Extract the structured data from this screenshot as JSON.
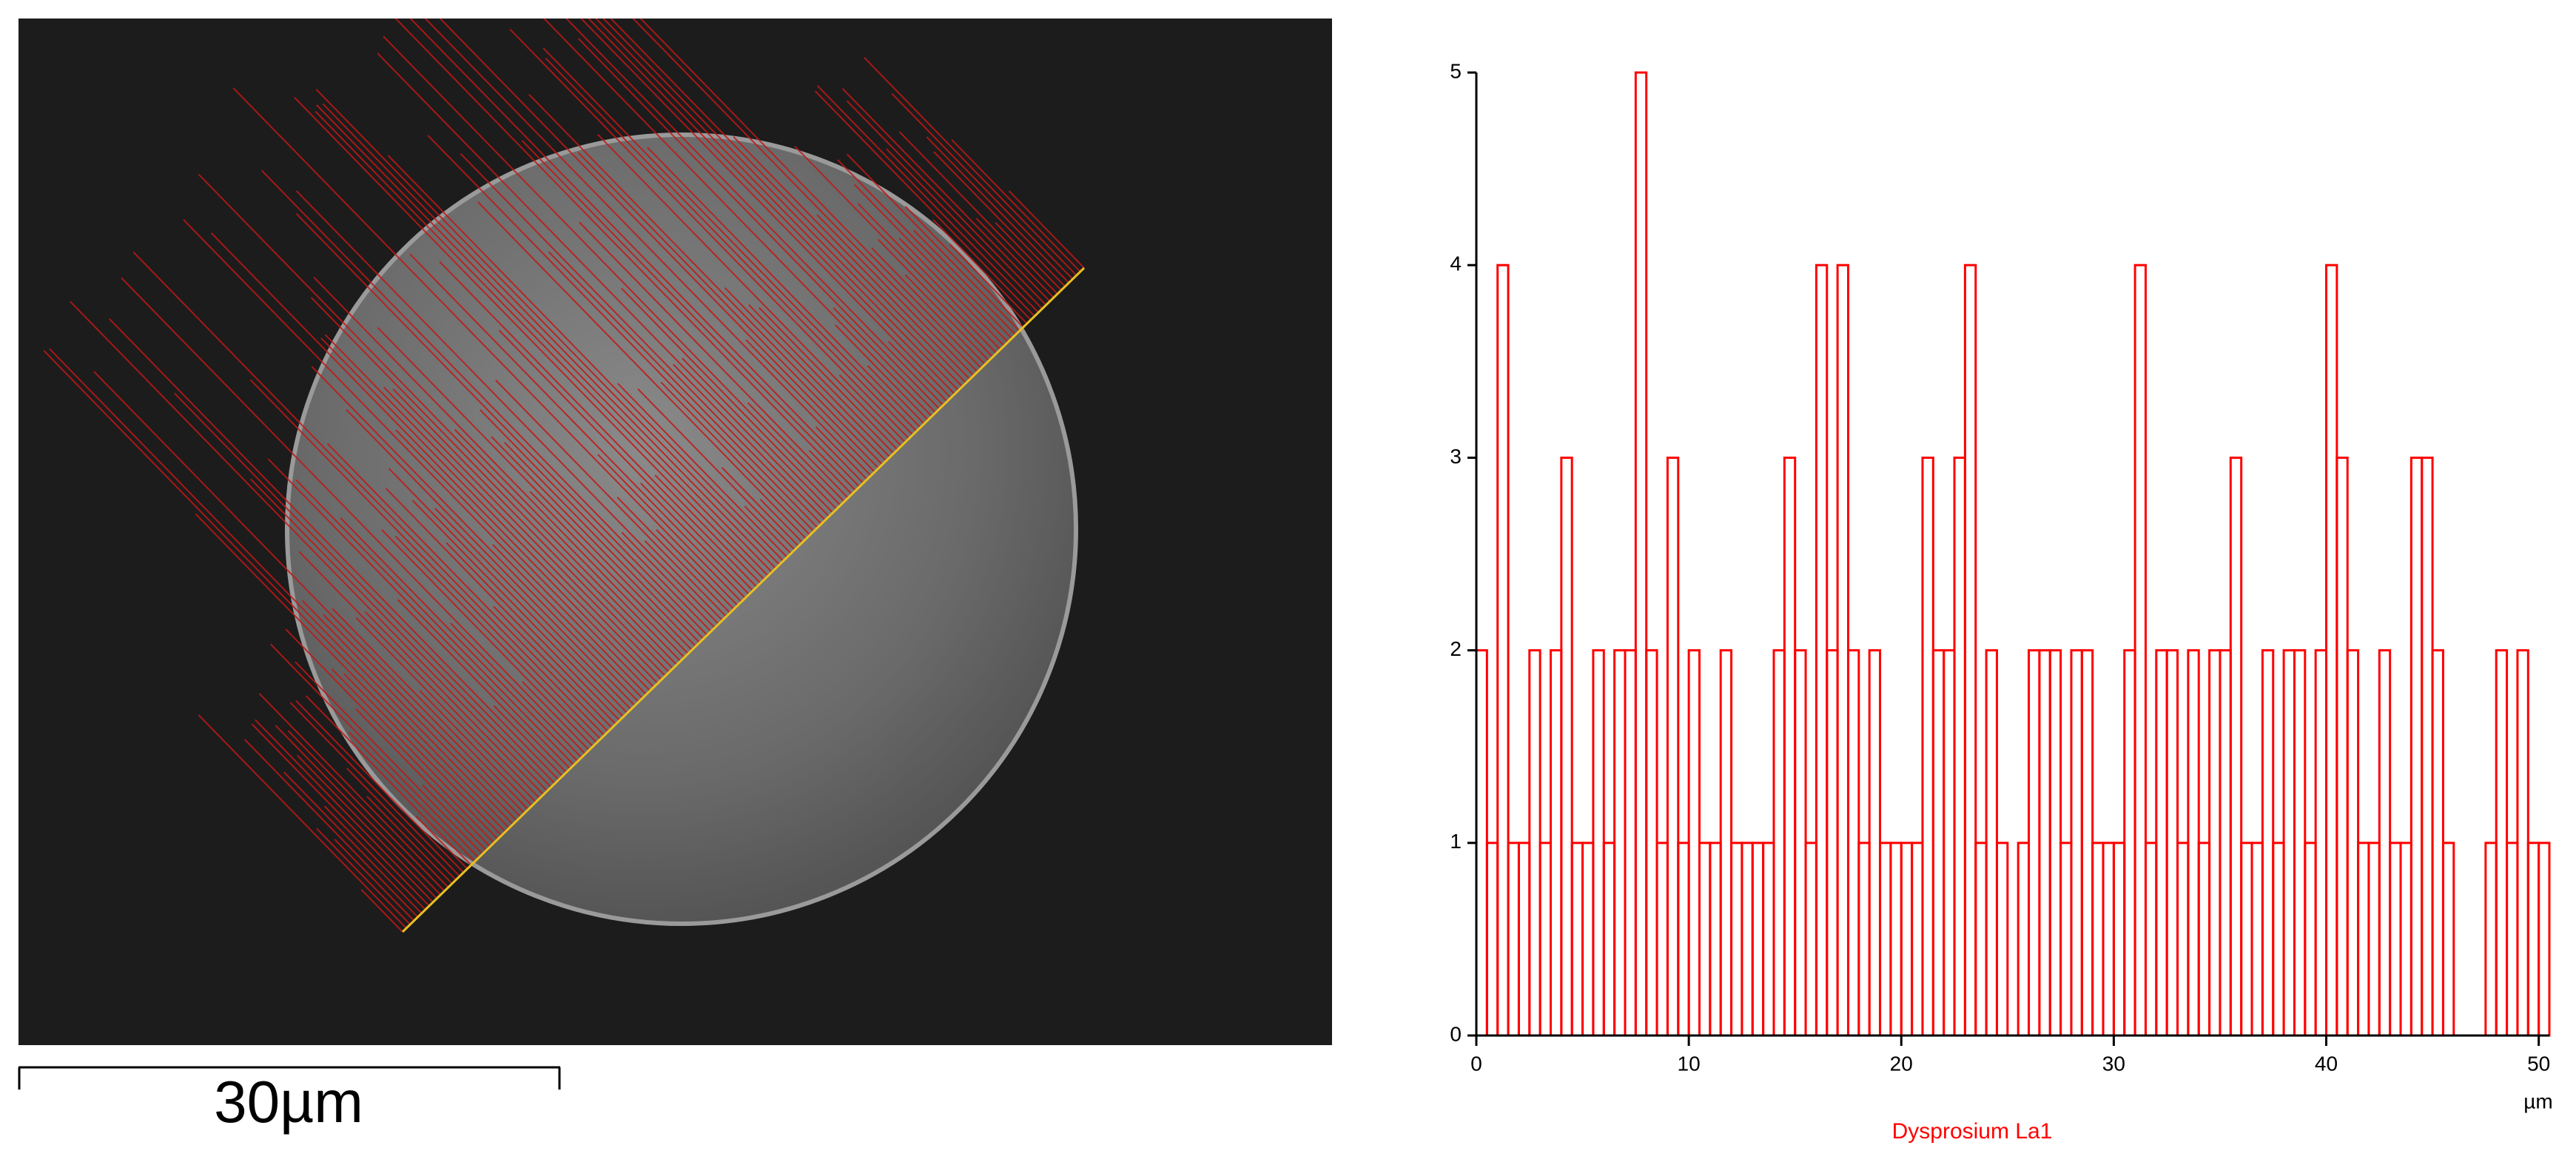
{
  "image": {
    "scale_bar_label": "30µm"
  },
  "chart_data": {
    "type": "bar",
    "x_unit": "µm",
    "x_label": "Dysprosium La1",
    "color": "#ff0000",
    "x": [
      0,
      0.5,
      1,
      1.5,
      2,
      2.5,
      3,
      3.5,
      4,
      4.5,
      5,
      5.5,
      6,
      6.5,
      7,
      7.5,
      8,
      8.5,
      9,
      9.5,
      10,
      10.5,
      11,
      11.5,
      12,
      12.5,
      13,
      13.5,
      14,
      14.5,
      15,
      15.5,
      16,
      16.5,
      17,
      17.5,
      18,
      18.5,
      19,
      19.5,
      20,
      20.5,
      21,
      21.5,
      22,
      22.5,
      23,
      23.5,
      24,
      24.5,
      25,
      25.5,
      26,
      26.5,
      27,
      27.5,
      28,
      28.5,
      29,
      29.5,
      30,
      30.5,
      31,
      31.5,
      32,
      32.5,
      33,
      33.5,
      34,
      34.5,
      35,
      35.5,
      36,
      36.5,
      37,
      37.5,
      38,
      38.5,
      39,
      39.5,
      40,
      40.5,
      41,
      41.5,
      42,
      42.5,
      43,
      43.5,
      44,
      44.5,
      45,
      45.5,
      46,
      46.5,
      47,
      47.5,
      48,
      48.5,
      49,
      49.5,
      50
    ],
    "values": [
      2,
      1,
      4,
      1,
      1,
      2,
      1,
      2,
      3,
      1,
      1,
      2,
      1,
      2,
      2,
      5,
      2,
      1,
      3,
      1,
      2,
      1,
      1,
      2,
      1,
      1,
      1,
      1,
      2,
      3,
      2,
      1,
      4,
      2,
      4,
      2,
      1,
      2,
      1,
      1,
      1,
      1,
      3,
      2,
      2,
      3,
      4,
      1,
      2,
      1,
      0,
      1,
      2,
      2,
      2,
      1,
      2,
      2,
      1,
      1,
      1,
      2,
      4,
      1,
      2,
      2,
      1,
      2,
      1,
      2,
      2,
      3,
      1,
      1,
      2,
      1,
      2,
      2,
      1,
      2,
      4,
      3,
      2,
      1,
      1,
      2,
      1,
      1,
      3,
      3,
      2,
      1,
      0,
      0,
      0,
      1,
      2,
      1,
      2,
      1,
      1
    ],
    "xlim": [
      0,
      50.5
    ],
    "xticks": [
      0,
      10,
      20,
      30,
      40,
      50
    ],
    "ylim": [
      0,
      5
    ],
    "yticks": [
      0,
      1,
      2,
      3,
      4,
      5
    ]
  }
}
